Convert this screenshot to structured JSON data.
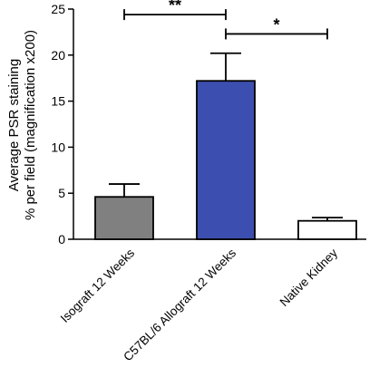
{
  "chart_data": {
    "type": "bar",
    "title": "",
    "xlabel": "",
    "ylabel_line1": "Average PSR staining",
    "ylabel_line2": "% per field (magnification x200)",
    "ylim": [
      0,
      25
    ],
    "yticks": [
      0,
      5,
      10,
      15,
      20,
      25
    ],
    "categories": [
      "Isograft 12 Weeks",
      "C57BL/6 Allograft 12 Weeks",
      "Native Kidney"
    ],
    "values": [
      4.6,
      17.2,
      2.0
    ],
    "errors": [
      1.4,
      3.0,
      0.35
    ],
    "colors": [
      "#808080",
      "#3C4FB0",
      "#FFFFFF"
    ],
    "significance": [
      {
        "from": 0,
        "to": 1,
        "label": "**",
        "y": 24.4
      },
      {
        "from": 1,
        "to": 2,
        "label": "*",
        "y": 22.3
      }
    ],
    "grid": false,
    "legend": "none"
  }
}
